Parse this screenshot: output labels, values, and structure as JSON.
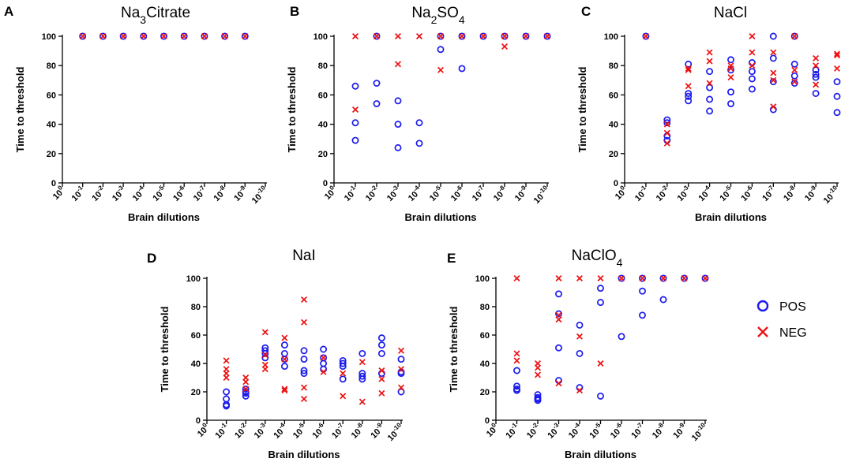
{
  "colors": {
    "pos": "#1a1aee",
    "neg": "#ee1111",
    "axis": "#000000"
  },
  "legend": {
    "pos_label": "POS",
    "neg_label": "NEG"
  },
  "chart_data": [
    {
      "id": "A",
      "type": "scatter",
      "title_parts": [
        {
          "t": "Na"
        },
        {
          "t": "3",
          "sub": true
        },
        {
          "t": "Citrate"
        }
      ],
      "xlabel": "Brain dilutions",
      "ylabel": "Time to threshold",
      "ylim": [
        0,
        100
      ],
      "yticks": [
        0,
        20,
        40,
        60,
        80,
        100
      ],
      "categories": [
        "0",
        "-1",
        "-2",
        "-3",
        "-4",
        "-5",
        "-6",
        "-7",
        "-8",
        "-9",
        "-10"
      ],
      "series": [
        {
          "name": "POS",
          "points": [
            [
              1,
              100
            ],
            [
              2,
              100
            ],
            [
              3,
              100
            ],
            [
              4,
              100
            ],
            [
              5,
              100
            ],
            [
              6,
              100
            ],
            [
              7,
              100
            ],
            [
              8,
              100
            ],
            [
              9,
              100
            ]
          ]
        },
        {
          "name": "NEG",
          "points": [
            [
              1,
              100
            ],
            [
              2,
              100
            ],
            [
              3,
              100
            ],
            [
              4,
              100
            ],
            [
              5,
              100
            ],
            [
              6,
              100
            ],
            [
              7,
              100
            ],
            [
              8,
              100
            ],
            [
              9,
              100
            ]
          ]
        }
      ]
    },
    {
      "id": "B",
      "type": "scatter",
      "title_parts": [
        {
          "t": "Na"
        },
        {
          "t": "2",
          "sub": true
        },
        {
          "t": "SO"
        },
        {
          "t": "4",
          "sub": true
        }
      ],
      "xlabel": "Brain dilutions",
      "ylabel": "Time to threshold",
      "ylim": [
        0,
        100
      ],
      "yticks": [
        0,
        20,
        40,
        60,
        80,
        100
      ],
      "categories": [
        "0",
        "-1",
        "-2",
        "-3",
        "-4",
        "-5",
        "-6",
        "-7",
        "-8",
        "-9",
        "-10"
      ],
      "series": [
        {
          "name": "POS",
          "points": [
            [
              1,
              66
            ],
            [
              1,
              41
            ],
            [
              1,
              29
            ],
            [
              2,
              100
            ],
            [
              2,
              68
            ],
            [
              2,
              54
            ],
            [
              3,
              56
            ],
            [
              3,
              40
            ],
            [
              3,
              24
            ],
            [
              4,
              41
            ],
            [
              4,
              27
            ],
            [
              5,
              100
            ],
            [
              5,
              91
            ],
            [
              6,
              100
            ],
            [
              6,
              78
            ],
            [
              7,
              100
            ],
            [
              8,
              100
            ],
            [
              9,
              100
            ],
            [
              10,
              100
            ]
          ]
        },
        {
          "name": "NEG",
          "points": [
            [
              1,
              100
            ],
            [
              1,
              50
            ],
            [
              2,
              100
            ],
            [
              3,
              100
            ],
            [
              3,
              81
            ],
            [
              4,
              100
            ],
            [
              5,
              100
            ],
            [
              5,
              77
            ],
            [
              6,
              100
            ],
            [
              7,
              100
            ],
            [
              8,
              100
            ],
            [
              8,
              93
            ],
            [
              9,
              100
            ],
            [
              10,
              100
            ]
          ]
        }
      ]
    },
    {
      "id": "C",
      "type": "scatter",
      "title_parts": [
        {
          "t": "NaCl"
        }
      ],
      "xlabel": "Brain dilutions",
      "ylabel": "Time to threshold",
      "ylim": [
        0,
        100
      ],
      "yticks": [
        0,
        20,
        40,
        60,
        80,
        100
      ],
      "categories": [
        "0",
        "-1",
        "-2",
        "-3",
        "-4",
        "-5",
        "-6",
        "-7",
        "-8",
        "-9",
        "-10"
      ],
      "series": [
        {
          "name": "POS",
          "points": [
            [
              1,
              100
            ],
            [
              2,
              43
            ],
            [
              2,
              41
            ],
            [
              2,
              32
            ],
            [
              2,
              29
            ],
            [
              3,
              81
            ],
            [
              3,
              61
            ],
            [
              3,
              59
            ],
            [
              3,
              56
            ],
            [
              4,
              76
            ],
            [
              4,
              65
            ],
            [
              4,
              57
            ],
            [
              4,
              49
            ],
            [
              5,
              84
            ],
            [
              5,
              77
            ],
            [
              5,
              62
            ],
            [
              5,
              54
            ],
            [
              6,
              82
            ],
            [
              6,
              76
            ],
            [
              6,
              71
            ],
            [
              6,
              64
            ],
            [
              7,
              100
            ],
            [
              7,
              85
            ],
            [
              7,
              69
            ],
            [
              7,
              50
            ],
            [
              8,
              100
            ],
            [
              8,
              81
            ],
            [
              8,
              73
            ],
            [
              8,
              68
            ],
            [
              9,
              77
            ],
            [
              9,
              74
            ],
            [
              9,
              72
            ],
            [
              9,
              61
            ],
            [
              10,
              69
            ],
            [
              10,
              59
            ],
            [
              10,
              48
            ]
          ]
        },
        {
          "name": "NEG",
          "points": [
            [
              1,
              100
            ],
            [
              2,
              40
            ],
            [
              2,
              34
            ],
            [
              2,
              27
            ],
            [
              3,
              78
            ],
            [
              3,
              77
            ],
            [
              3,
              66
            ],
            [
              4,
              89
            ],
            [
              4,
              83
            ],
            [
              4,
              68
            ],
            [
              5,
              80
            ],
            [
              5,
              78
            ],
            [
              5,
              72
            ],
            [
              6,
              100
            ],
            [
              6,
              89
            ],
            [
              6,
              80
            ],
            [
              7,
              89
            ],
            [
              7,
              75
            ],
            [
              7,
              70
            ],
            [
              7,
              52
            ],
            [
              8,
              100
            ],
            [
              8,
              77
            ],
            [
              8,
              69
            ],
            [
              9,
              85
            ],
            [
              9,
              80
            ],
            [
              9,
              67
            ],
            [
              10,
              88
            ],
            [
              10,
              87
            ],
            [
              10,
              78
            ]
          ]
        }
      ]
    },
    {
      "id": "D",
      "type": "scatter",
      "title_parts": [
        {
          "t": "NaI"
        }
      ],
      "xlabel": "Brain dilutions",
      "ylabel": "Time to threshold",
      "ylim": [
        0,
        100
      ],
      "yticks": [
        0,
        20,
        40,
        60,
        80,
        100
      ],
      "categories": [
        "0",
        "-1",
        "-2",
        "-3",
        "-4",
        "-5",
        "-6",
        "-7",
        "-8",
        "-9",
        "-10"
      ],
      "series": [
        {
          "name": "POS",
          "points": [
            [
              1,
              20
            ],
            [
              1,
              15
            ],
            [
              1,
              11
            ],
            [
              1,
              10
            ],
            [
              2,
              22
            ],
            [
              2,
              20
            ],
            [
              2,
              19
            ],
            [
              2,
              17
            ],
            [
              3,
              51
            ],
            [
              3,
              49
            ],
            [
              3,
              47
            ],
            [
              3,
              44
            ],
            [
              4,
              53
            ],
            [
              4,
              47
            ],
            [
              4,
              43
            ],
            [
              4,
              38
            ],
            [
              5,
              49
            ],
            [
              5,
              43
            ],
            [
              5,
              35
            ],
            [
              5,
              33
            ],
            [
              6,
              50
            ],
            [
              6,
              44
            ],
            [
              6,
              40
            ],
            [
              6,
              36
            ],
            [
              7,
              42
            ],
            [
              7,
              40
            ],
            [
              7,
              38
            ],
            [
              7,
              29
            ],
            [
              8,
              47
            ],
            [
              8,
              33
            ],
            [
              8,
              31
            ],
            [
              8,
              29
            ],
            [
              9,
              58
            ],
            [
              9,
              53
            ],
            [
              9,
              47
            ],
            [
              9,
              33
            ],
            [
              10,
              43
            ],
            [
              10,
              34
            ],
            [
              10,
              33
            ],
            [
              10,
              20
            ]
          ]
        },
        {
          "name": "NEG",
          "points": [
            [
              1,
              42
            ],
            [
              1,
              36
            ],
            [
              1,
              33
            ],
            [
              1,
              30
            ],
            [
              2,
              30
            ],
            [
              2,
              27
            ],
            [
              2,
              22
            ],
            [
              3,
              62
            ],
            [
              3,
              46
            ],
            [
              3,
              39
            ],
            [
              3,
              36
            ],
            [
              4,
              58
            ],
            [
              4,
              43
            ],
            [
              4,
              22
            ],
            [
              4,
              21
            ],
            [
              5,
              85
            ],
            [
              5,
              69
            ],
            [
              5,
              23
            ],
            [
              5,
              15
            ],
            [
              6,
              44
            ],
            [
              6,
              34
            ],
            [
              7,
              33
            ],
            [
              7,
              17
            ],
            [
              8,
              41
            ],
            [
              8,
              13
            ],
            [
              9,
              35
            ],
            [
              9,
              29
            ],
            [
              9,
              19
            ],
            [
              10,
              49
            ],
            [
              10,
              36
            ],
            [
              10,
              23
            ]
          ]
        }
      ]
    },
    {
      "id": "E",
      "type": "scatter",
      "title_parts": [
        {
          "t": "NaClO"
        },
        {
          "t": "4",
          "sub": true
        }
      ],
      "xlabel": "Brain dilutions",
      "ylabel": "Time to threshold",
      "ylim": [
        0,
        100
      ],
      "yticks": [
        0,
        20,
        40,
        60,
        80,
        100
      ],
      "categories": [
        "0",
        "-1",
        "-2",
        "-3",
        "-4",
        "-5",
        "-6",
        "-7",
        "-8",
        "-9",
        "-10"
      ],
      "series": [
        {
          "name": "POS",
          "points": [
            [
              1,
              35
            ],
            [
              1,
              24
            ],
            [
              1,
              22
            ],
            [
              1,
              21
            ],
            [
              2,
              18
            ],
            [
              2,
              16
            ],
            [
              2,
              15
            ],
            [
              2,
              14
            ],
            [
              3,
              89
            ],
            [
              3,
              75
            ],
            [
              3,
              51
            ],
            [
              3,
              28
            ],
            [
              4,
              67
            ],
            [
              4,
              47
            ],
            [
              4,
              23
            ],
            [
              5,
              93
            ],
            [
              5,
              83
            ],
            [
              5,
              17
            ],
            [
              6,
              100
            ],
            [
              6,
              59
            ],
            [
              7,
              100
            ],
            [
              7,
              91
            ],
            [
              7,
              74
            ],
            [
              8,
              100
            ],
            [
              8,
              85
            ],
            [
              9,
              100
            ],
            [
              10,
              100
            ]
          ]
        },
        {
          "name": "NEG",
          "points": [
            [
              1,
              100
            ],
            [
              1,
              47
            ],
            [
              1,
              42
            ],
            [
              2,
              40
            ],
            [
              2,
              37
            ],
            [
              2,
              32
            ],
            [
              3,
              100
            ],
            [
              3,
              74
            ],
            [
              3,
              71
            ],
            [
              3,
              26
            ],
            [
              4,
              100
            ],
            [
              4,
              59
            ],
            [
              4,
              21
            ],
            [
              5,
              100
            ],
            [
              5,
              40
            ],
            [
              6,
              100
            ],
            [
              7,
              100
            ],
            [
              8,
              100
            ],
            [
              9,
              100
            ],
            [
              10,
              100
            ]
          ]
        }
      ]
    }
  ]
}
